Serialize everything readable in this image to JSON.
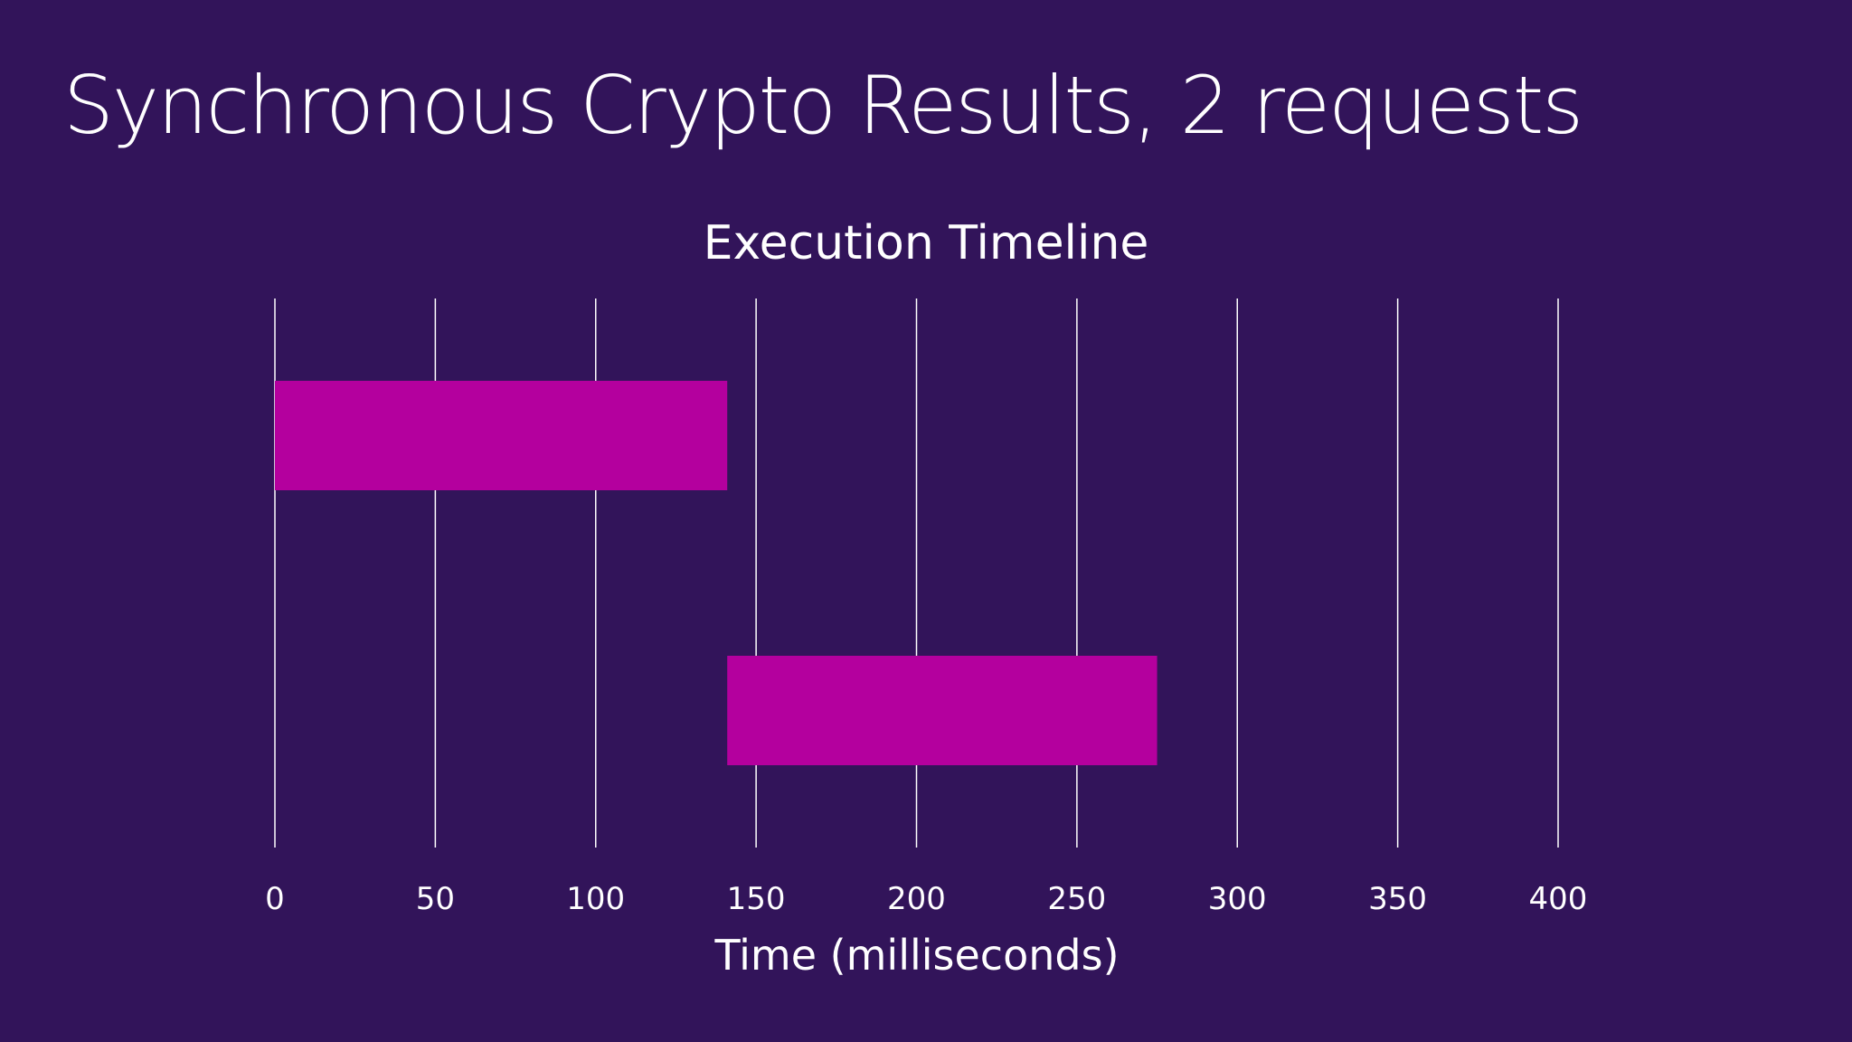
{
  "slide": {
    "title": "Synchronous Crypto Results, 2 requests"
  },
  "colors": {
    "background": "#32145a",
    "bar": "#b4009e",
    "gridline": "#ffffff",
    "text": "#ffffff"
  },
  "chart_data": {
    "type": "bar",
    "orientation": "horizontal",
    "style": "gantt-timeline",
    "title": "Execution Timeline",
    "xlabel": "Time (milliseconds)",
    "ylabel": "",
    "xlim": [
      0,
      400
    ],
    "xticks": [
      0,
      50,
      100,
      150,
      200,
      250,
      300,
      350,
      400
    ],
    "grid": "vertical",
    "legend": "none",
    "bars": [
      {
        "start": 0,
        "end": 141
      },
      {
        "start": 141,
        "end": 275
      }
    ]
  }
}
